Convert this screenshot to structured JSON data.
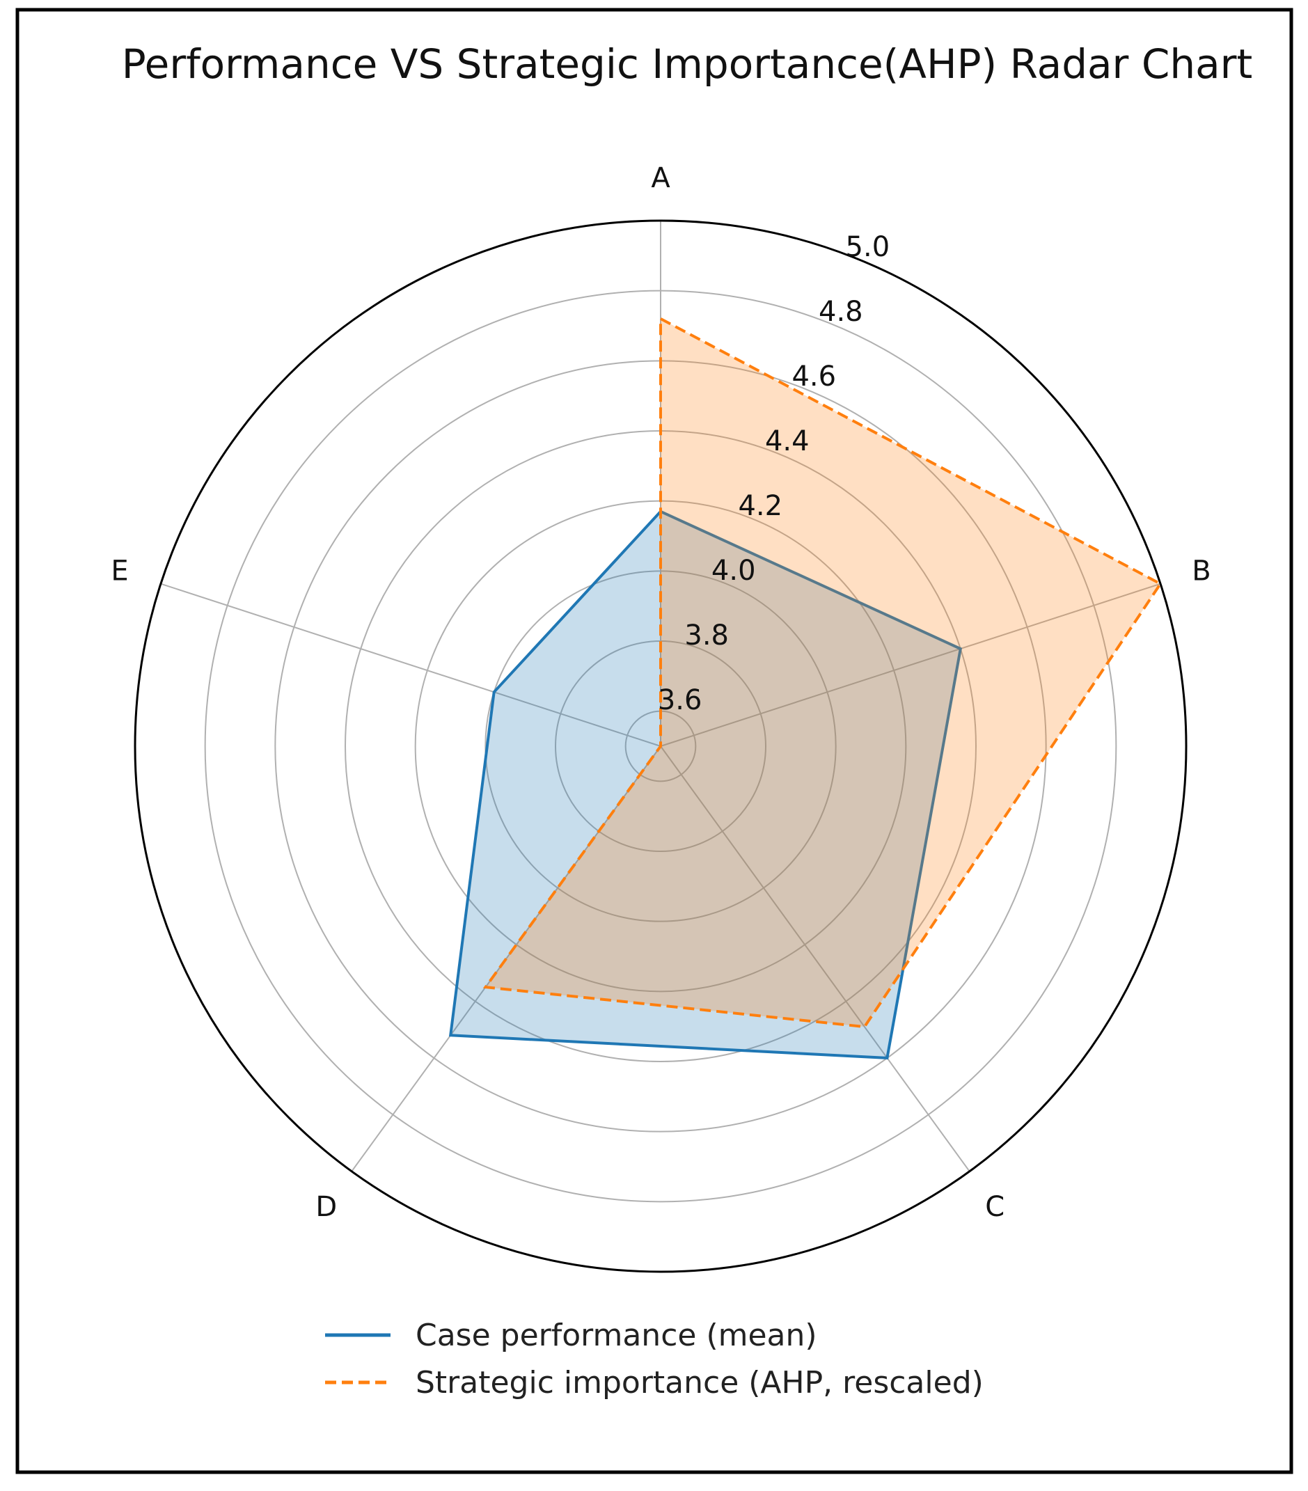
{
  "chart_data": {
    "type": "radar",
    "title": "Performance VS Strategic Importance(AHP) Radar Chart",
    "categories": [
      "A",
      "B",
      "C",
      "D",
      "E"
    ],
    "rlim": [
      3.5,
      5.0
    ],
    "rticks": [
      "3.6",
      "3.8",
      "4.0",
      "4.2",
      "4.4",
      "4.6",
      "4.8",
      "5.0"
    ],
    "grid": true,
    "legend_position": "bottom",
    "series": [
      {
        "name": "Case performance (mean)",
        "values": [
          4.17,
          4.4,
          4.6,
          4.52,
          4.0
        ],
        "color": "#1f77b4",
        "style": "solid",
        "fill": "#1f77b4"
      },
      {
        "name": "Strategic importance (AHP, rescaled)",
        "values": [
          4.72,
          5.0,
          4.49,
          4.35,
          3.5
        ],
        "color": "#ff7f0e",
        "style": "dashed",
        "fill": "#ff7f0e"
      }
    ]
  }
}
